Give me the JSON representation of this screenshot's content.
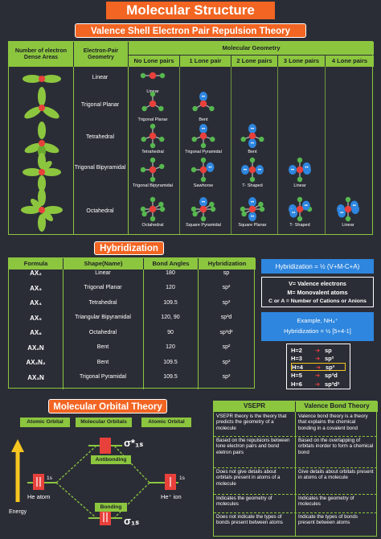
{
  "title": "Molecular Structure",
  "vsepr_title": "Valence Shell Electron Pair Repulsion Theory",
  "table1": {
    "col_dense": "Number of electron Dense Areas",
    "col_geom": "Electron-Pair Geometry",
    "col_mol": "Molecular Geometry",
    "lone_heads": [
      "No Lone pairs",
      "1 Lone pair",
      "2 Lone pairs",
      "3 Lone pairs",
      "4 Lone pairs"
    ],
    "rows": [
      {
        "geometry": "Linear",
        "shapes": [
          "Linear",
          "",
          "",
          "",
          ""
        ]
      },
      {
        "geometry": "Trigonal Planar",
        "shapes": [
          "Trigonal Planar",
          "Bent",
          "",
          "",
          ""
        ]
      },
      {
        "geometry": "Tetrahedral",
        "shapes": [
          "Tetrahedral",
          "Trigonal Pyramidal",
          "Bent",
          "",
          ""
        ]
      },
      {
        "geometry": "Trigonal Bipyramidal",
        "shapes": [
          "Trigonal Bipyramidal",
          "Sawhorse",
          "T- Shaped",
          "Linear",
          ""
        ]
      },
      {
        "geometry": "Octahedral",
        "shapes": [
          "Octahedral",
          "Square Pyramidal",
          "Square Planar",
          "T- Shaped",
          "Linear"
        ]
      }
    ]
  },
  "hybrid_title": "Hybridization",
  "table2": {
    "headers": [
      "Formula",
      "Shape(Name)",
      "Bond Angles",
      "Hybridization"
    ],
    "rows": [
      {
        "formula": "AX₂",
        "shape": "Linear",
        "angle": "180",
        "hyb": "sp"
      },
      {
        "formula": "AX₃",
        "shape": "Trigonal Planar",
        "angle": "120",
        "hyb": "sp²"
      },
      {
        "formula": "AX₄",
        "shape": "Tetrahedral",
        "angle": "109.5",
        "hyb": "sp³"
      },
      {
        "formula": "AX₅",
        "shape": "Triangular Bipyramidal",
        "angle": "120, 90",
        "hyb": "sp³d"
      },
      {
        "formula": "AX₆",
        "shape": "Octahedral",
        "angle": "90",
        "hyb": "sp³d²"
      },
      {
        "formula": "AX₂N",
        "shape": "Bent",
        "angle": "120",
        "hyb": "sp²"
      },
      {
        "formula": "AX₂N₂",
        "shape": "Bent",
        "angle": "109.5",
        "hyb": "sp³"
      },
      {
        "formula": "AX₃N",
        "shape": "Trigonal Pyramidal",
        "angle": "109.5",
        "hyb": "sp³"
      }
    ]
  },
  "formula_box": "Hybridization = ½ (V+M-C+A)",
  "legend": [
    "V= Valence electrons",
    "M= Monovalent atoms",
    "C or A = Number of Cations or Anions"
  ],
  "example_title": "Example, NH₄⁺",
  "example_formula": "Hybridization = ½ [5+4-1]",
  "h_values": [
    {
      "h": "H=2",
      "sp": "sp"
    },
    {
      "h": "H=3",
      "sp": "sp²"
    },
    {
      "h": "H=4",
      "sp": "sp³"
    },
    {
      "h": "H=5",
      "sp": "sp³d"
    },
    {
      "h": "H=6",
      "sp": "sp³d²"
    }
  ],
  "mot_title": "Molecular Orbital Theory",
  "mot": {
    "atomic_left": "Atomic Orbital",
    "molecular": "Molecular Orbitals",
    "atomic_right": "Atomic Orbital",
    "sigma_star": "σ*₁ₛ",
    "antibonding": "Antibonding",
    "bonding": "Bonding",
    "sigma": "σ₁ₛ",
    "one_s_left": "1s",
    "one_s_right": "1s",
    "he_atom": "He atom",
    "he_ion": "He⁺ ion",
    "energy": "Energy"
  },
  "compare": {
    "head_left": "VSEPR",
    "head_right": "Valence Bond Theory",
    "rows": [
      [
        "VSEPR theory is the theory that predicts the geometry of a molecule",
        "Valence bond theory is a theory that explains the chemical bonding in a covalent bond"
      ],
      [
        "Based on the repulsions between lone electron pairs and bond eletron pairs",
        "Based on the overlapping of orbitals inorder to form a chemical bond"
      ],
      [
        "Does not give details about orbitals present in atoms of a molecule",
        "Give details about orbitals present in atoms of a molecule"
      ],
      [
        "Indicates the geometry of molecules",
        "Indicates the geometry of molecules"
      ],
      [
        "Does not indicate the types of bonds present between atoms",
        "Indicate the types of bonds present between atoms"
      ]
    ]
  },
  "colors": {
    "orange": "#f26522",
    "green": "#8cc63f",
    "blue": "#2e86de",
    "background": "#2b2d36",
    "atom_red": "#e8403b",
    "atom_green": "#56b84f"
  }
}
